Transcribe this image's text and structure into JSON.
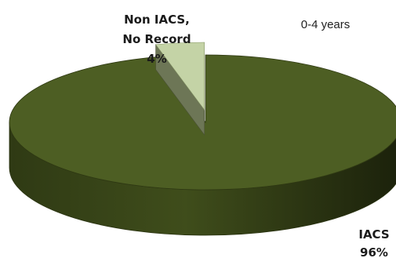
{
  "chart_data": {
    "type": "pie",
    "subtitle": "0-4 years",
    "slices": [
      {
        "label_lines": [
          "IACS",
          "96%"
        ],
        "value": 96,
        "color": "#4d5e23"
      },
      {
        "label_lines": [
          "Non IACS,",
          "No Record",
          "4%"
        ],
        "value": 4,
        "color": "#c4d3a6"
      }
    ],
    "style": "3d-exploded"
  }
}
